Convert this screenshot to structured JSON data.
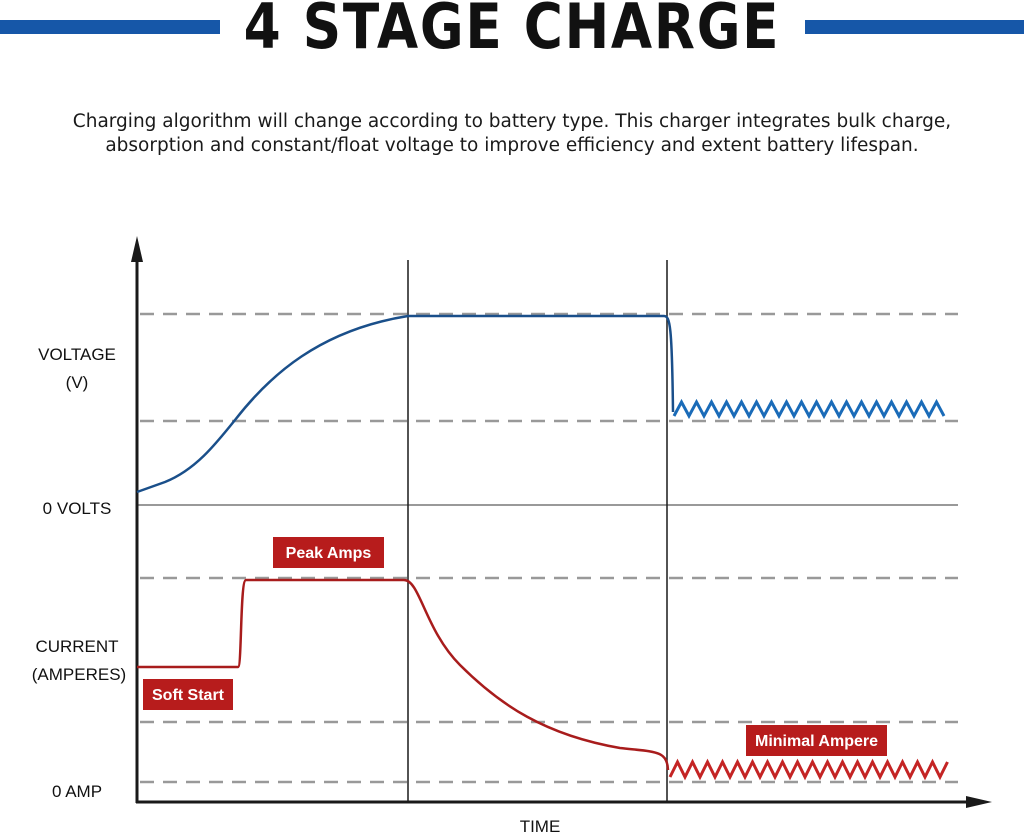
{
  "header": {
    "title": "4 STAGE CHARGE",
    "description_line1": "Charging algorithm will change according to battery type. This charger integrates bulk charge,",
    "description_line2": "absorption and constant/float voltage to improve efficiency and extent battery lifespan."
  },
  "diagram": {
    "y_labels": {
      "voltage_line1": "VOLTAGE",
      "voltage_line2": "(V)",
      "zero_volts": "0 VOLTS",
      "current_line1": "CURRENT",
      "current_line2": "(AMPERES)",
      "zero_amp": "0 AMP"
    },
    "x_label": "TIME",
    "annotations": {
      "peak_amps": "Peak Amps",
      "soft_start": "Soft Start",
      "minimal_ampere": "Minimal Ampere"
    },
    "colors": {
      "voltage_curve": "#1a4f8a",
      "current_curve": "#a81c1c",
      "badge": "#b71c1c",
      "accent_bar": "#1657a8",
      "dashed_guide": "#999999",
      "axis": "#1a1a1a"
    }
  }
}
